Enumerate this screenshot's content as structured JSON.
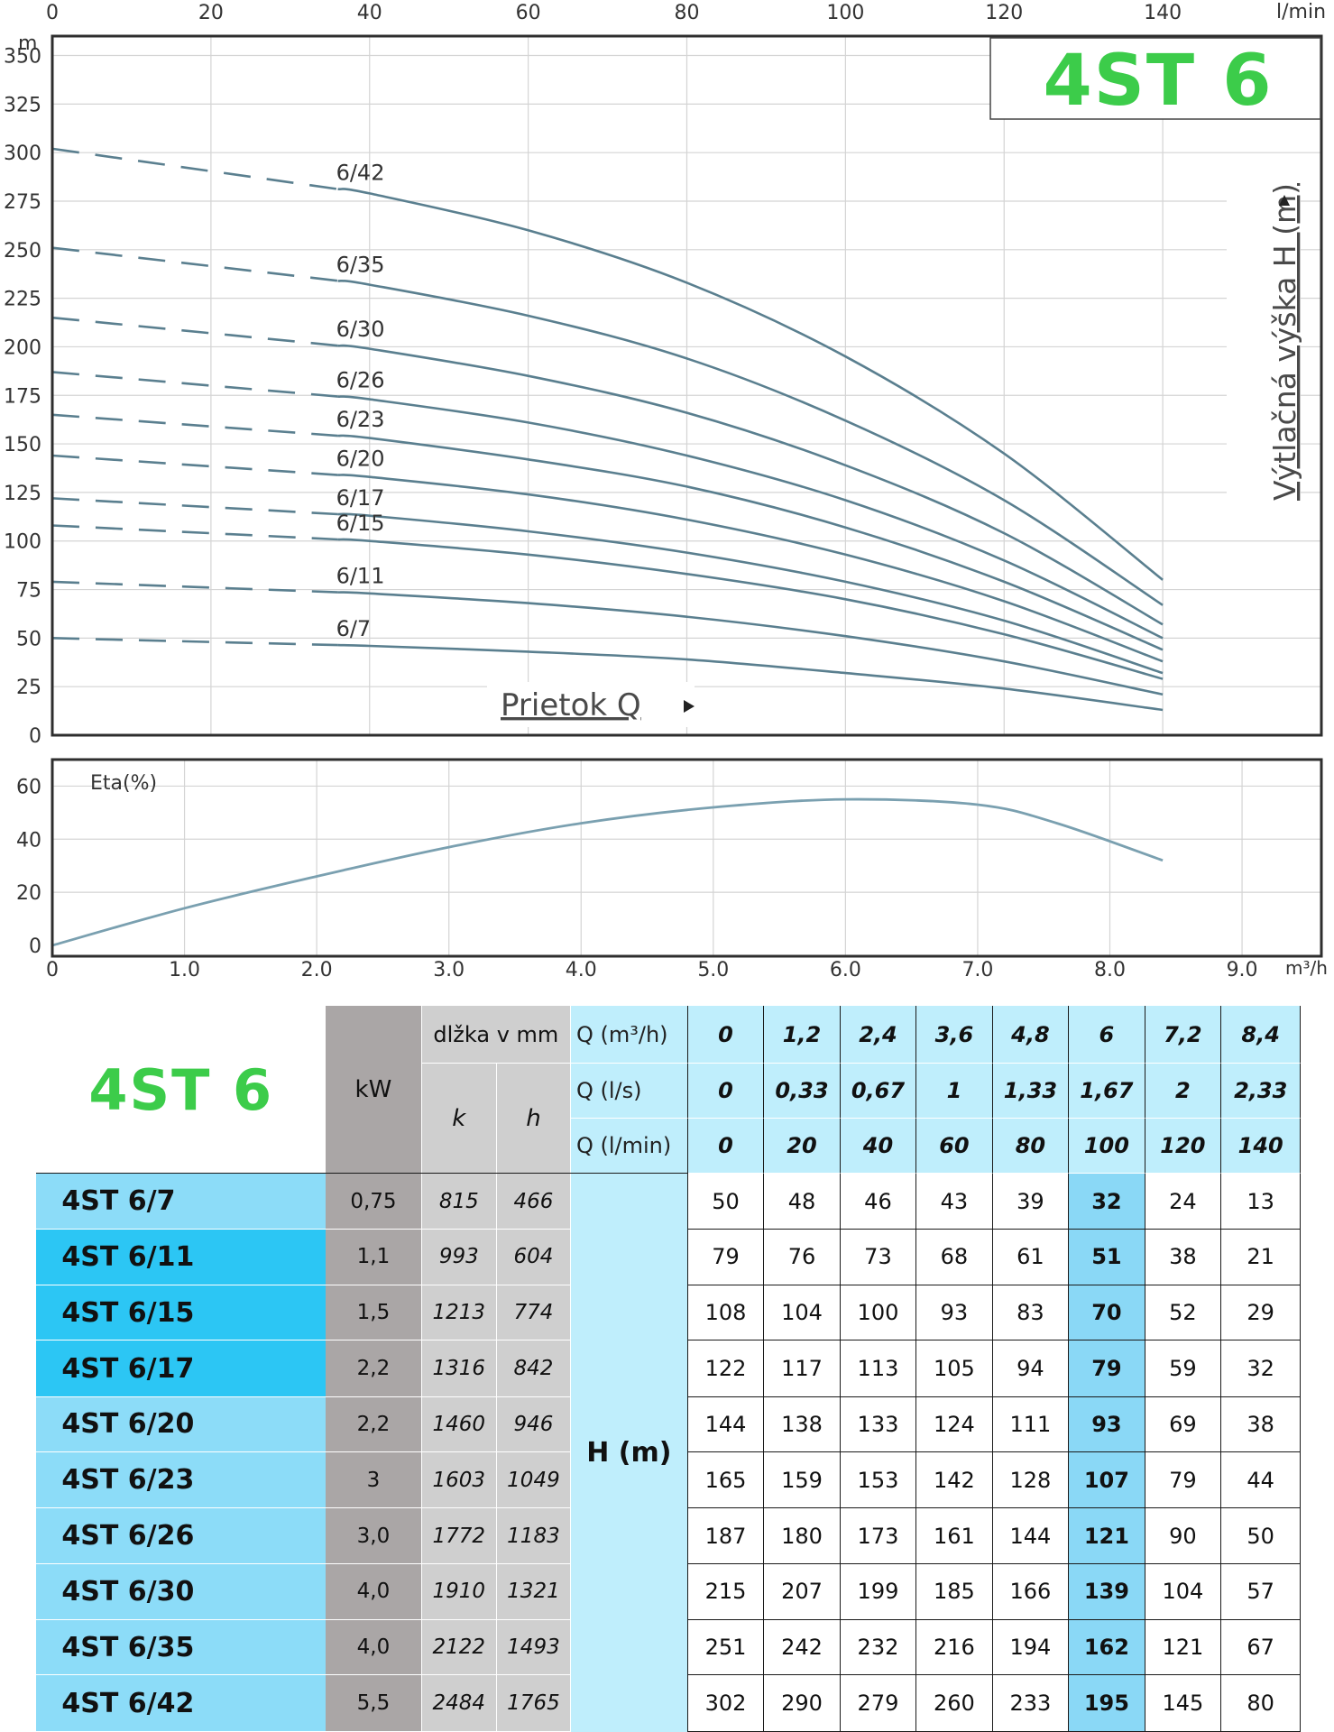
{
  "chart_data": [
    {
      "type": "line",
      "title": "4ST 6",
      "xlabel": "Prietok Q",
      "ylabel": "Výtlačná výška H (m)",
      "y_unit": "m",
      "x_unit_top": "l/min",
      "x_ticks_top": [
        0,
        20,
        40,
        60,
        80,
        100,
        120,
        140
      ],
      "y_ticks": [
        0,
        25,
        50,
        75,
        100,
        125,
        150,
        175,
        200,
        225,
        250,
        275,
        300,
        325,
        350
      ],
      "xlim": [
        0,
        160
      ],
      "ylim": [
        0,
        360
      ],
      "grid": true,
      "dashed_until_x": 36,
      "x": [
        0,
        20,
        40,
        60,
        80,
        100,
        120,
        140
      ],
      "series": [
        {
          "name": "6/42",
          "values": [
            302,
            290,
            279,
            260,
            233,
            195,
            145,
            80
          ]
        },
        {
          "name": "6/35",
          "values": [
            251,
            242,
            232,
            216,
            194,
            162,
            121,
            67
          ]
        },
        {
          "name": "6/30",
          "values": [
            215,
            207,
            199,
            185,
            166,
            139,
            104,
            57
          ]
        },
        {
          "name": "6/26",
          "values": [
            187,
            180,
            173,
            161,
            144,
            121,
            90,
            50
          ]
        },
        {
          "name": "6/23",
          "values": [
            165,
            159,
            153,
            142,
            128,
            107,
            79,
            44
          ]
        },
        {
          "name": "6/20",
          "values": [
            144,
            138,
            133,
            124,
            111,
            93,
            69,
            38
          ]
        },
        {
          "name": "6/17",
          "values": [
            122,
            117,
            113,
            105,
            94,
            79,
            59,
            32
          ]
        },
        {
          "name": "6/15",
          "values": [
            108,
            104,
            100,
            93,
            83,
            70,
            52,
            29
          ]
        },
        {
          "name": "6/11",
          "values": [
            79,
            76,
            73,
            68,
            61,
            51,
            38,
            21
          ]
        },
        {
          "name": "6/7",
          "values": [
            50,
            48,
            46,
            43,
            39,
            32,
            24,
            13
          ]
        }
      ]
    },
    {
      "type": "line",
      "ylabel": "Eta(%)",
      "x_unit": "m³/h",
      "x_ticks": [
        "0",
        "1.0",
        "2.0",
        "3.0",
        "4.0",
        "5.0",
        "6.0",
        "7.0",
        "8.0",
        "9.0"
      ],
      "y_ticks": [
        0,
        20,
        40,
        60
      ],
      "xlim": [
        0,
        9.6
      ],
      "ylim": [
        0,
        70
      ],
      "grid": true,
      "x": [
        0,
        1,
        2,
        3,
        4,
        5,
        6,
        7,
        7.6,
        8.4
      ],
      "series": [
        {
          "values": [
            0,
            14,
            26,
            37,
            46,
            52,
            55,
            53,
            46,
            32
          ]
        }
      ]
    },
    {
      "type": "table",
      "brand": "4ST 6",
      "kw_header": "kW",
      "length_header": "dlžka v mm",
      "k_header": "k",
      "h_header": "h",
      "h_label": "H   (m)",
      "q_rows": [
        {
          "label": "Q (m³/h)",
          "values": [
            "0",
            "1,2",
            "2,4",
            "3,6",
            "4,8",
            "6",
            "7,2",
            "8,4"
          ]
        },
        {
          "label": "Q (l/s)",
          "values": [
            "0",
            "0,33",
            "0,67",
            "1",
            "1,33",
            "1,67",
            "2",
            "2,33"
          ]
        },
        {
          "label": "Q (l/min)",
          "values": [
            "0",
            "20",
            "40",
            "60",
            "80",
            "100",
            "120",
            "140"
          ]
        }
      ],
      "rows": [
        {
          "model": "4ST 6/7",
          "kw": "0,75",
          "k": "815",
          "h": "466",
          "values": [
            "50",
            "48",
            "46",
            "43",
            "39",
            "32",
            "24",
            "13"
          ]
        },
        {
          "model": "4ST 6/11",
          "kw": "1,1",
          "k": "993",
          "h": "604",
          "values": [
            "79",
            "76",
            "73",
            "68",
            "61",
            "51",
            "38",
            "21"
          ]
        },
        {
          "model": "4ST 6/15",
          "kw": "1,5",
          "k": "1213",
          "h": "774",
          "values": [
            "108",
            "104",
            "100",
            "93",
            "83",
            "70",
            "52",
            "29"
          ]
        },
        {
          "model": "4ST 6/17",
          "kw": "2,2",
          "k": "1316",
          "h": "842",
          "values": [
            "122",
            "117",
            "113",
            "105",
            "94",
            "79",
            "59",
            "32"
          ]
        },
        {
          "model": "4ST 6/20",
          "kw": "2,2",
          "k": "1460",
          "h": "946",
          "values": [
            "144",
            "138",
            "133",
            "124",
            "111",
            "93",
            "69",
            "38"
          ]
        },
        {
          "model": "4ST 6/23",
          "kw": "3",
          "k": "1603",
          "h": "1049",
          "values": [
            "165",
            "159",
            "153",
            "142",
            "128",
            "107",
            "79",
            "44"
          ]
        },
        {
          "model": "4ST 6/26",
          "kw": "3,0",
          "k": "1772",
          "h": "1183",
          "values": [
            "187",
            "180",
            "173",
            "161",
            "144",
            "121",
            "90",
            "50"
          ]
        },
        {
          "model": "4ST 6/30",
          "kw": "4,0",
          "k": "1910",
          "h": "1321",
          "values": [
            "215",
            "207",
            "199",
            "185",
            "166",
            "139",
            "104",
            "57"
          ]
        },
        {
          "model": "4ST 6/35",
          "kw": "4,0",
          "k": "2122",
          "h": "1493",
          "values": [
            "251",
            "242",
            "232",
            "216",
            "194",
            "162",
            "121",
            "67"
          ]
        },
        {
          "model": "4ST 6/42",
          "kw": "5,5",
          "k": "2484",
          "h": "1765",
          "values": [
            "302",
            "290",
            "279",
            "260",
            "233",
            "195",
            "145",
            "80"
          ]
        }
      ]
    }
  ],
  "colors": {
    "curve": "#5a7f8f",
    "grid": "#d4d4d4",
    "brand_green": "#3ccc4a",
    "header_blue": "#bfeefc",
    "row_blue": "#8cdcf8",
    "row_blue_dark": "#2cc6f4",
    "highlight_blue": "#8ad8f6",
    "gray_kw": "#aaa6a6",
    "gray_len": "#cfcfcf"
  }
}
